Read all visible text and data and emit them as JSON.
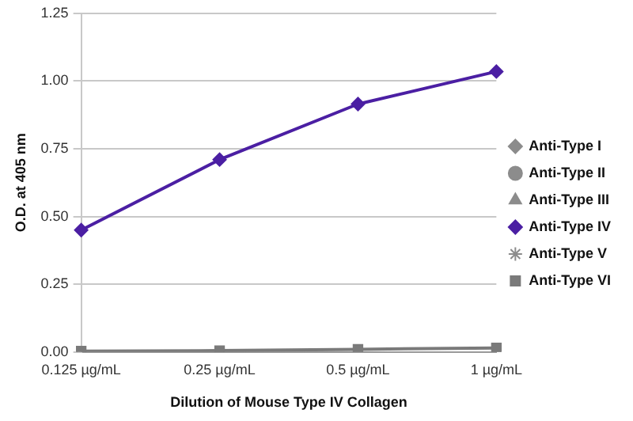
{
  "chart_data": {
    "type": "line",
    "xlabel": "Dilution of Mouse Type IV Collagen",
    "ylabel": "O.D. at 405 nm",
    "categories": [
      "0.125 µg/mL",
      "0.25 µg/mL",
      "0.5 µg/mL",
      "1 µg/mL"
    ],
    "series": [
      {
        "name": "Anti-Type I",
        "color": "#8c8c8c",
        "marker": "diamond",
        "values": [
          null,
          null,
          null,
          null
        ]
      },
      {
        "name": "Anti-Type II",
        "color": "#8c8c8c",
        "marker": "circle",
        "values": [
          null,
          null,
          null,
          null
        ]
      },
      {
        "name": "Anti-Type III",
        "color": "#8c8c8c",
        "marker": "triangle",
        "values": [
          null,
          null,
          null,
          null
        ]
      },
      {
        "name": "Anti-Type IV",
        "color": "#4b1fa3",
        "marker": "diamond",
        "values": [
          0.45,
          0.71,
          0.915,
          1.035
        ]
      },
      {
        "name": "Anti-Type V",
        "color": "#8c8c8c",
        "marker": "star",
        "values": [
          null,
          null,
          null,
          null
        ]
      },
      {
        "name": "Anti-Type VI",
        "color": "#7a7a7a",
        "marker": "square",
        "values": [
          0.003,
          0.005,
          0.01,
          0.015
        ]
      }
    ],
    "ylim": [
      0,
      1.25
    ],
    "yticks": [
      {
        "value": 0,
        "label": "0.00"
      },
      {
        "value": 0.25,
        "label": "0.25"
      },
      {
        "value": 0.5,
        "label": "0.50"
      },
      {
        "value": 0.75,
        "label": "0.75"
      },
      {
        "value": 1,
        "label": "1.00"
      },
      {
        "value": 1.25,
        "label": "1.25"
      }
    ],
    "grid": "y",
    "legend": "right",
    "line_style": "solid"
  }
}
